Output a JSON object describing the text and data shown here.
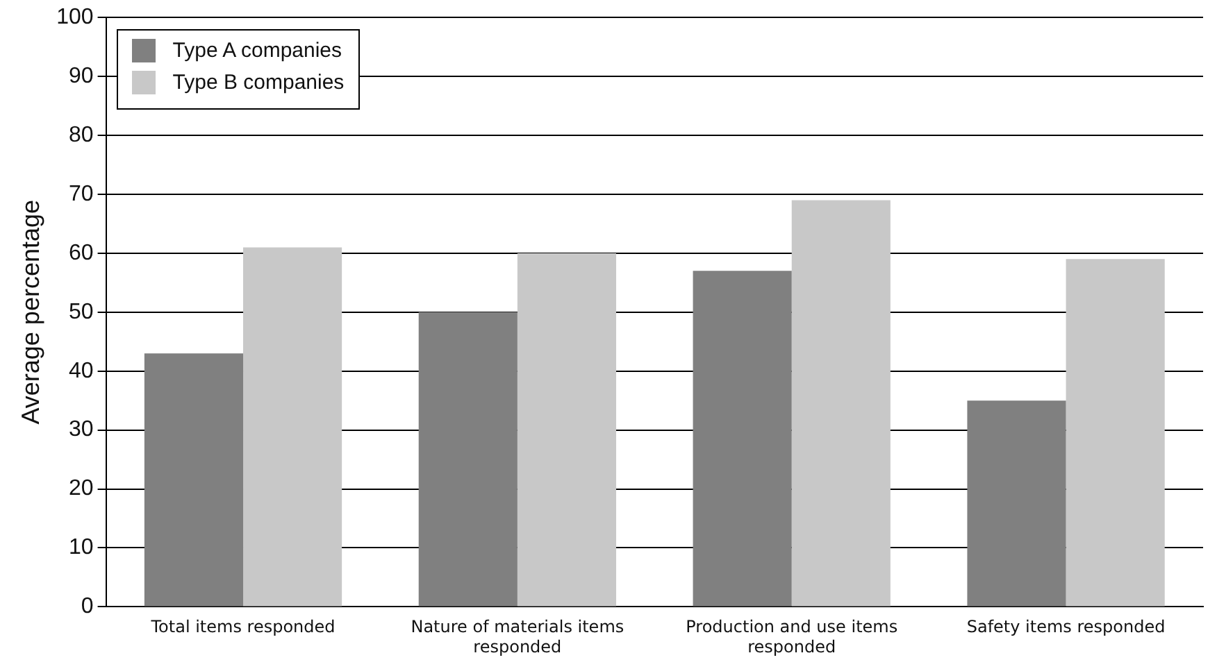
{
  "chart_data": {
    "type": "bar",
    "ylabel": "Average percentage",
    "categories": [
      "Total items responded",
      "Nature of materials items responded",
      "Production and use items responded",
      "Safety items responded"
    ],
    "series": [
      {
        "name": "Type A companies",
        "color": "#808080",
        "values": [
          43,
          50,
          57,
          35
        ]
      },
      {
        "name": "Type B companies",
        "color": "#c8c8c8",
        "values": [
          61,
          60,
          69,
          59
        ]
      }
    ],
    "ylim": [
      0,
      100
    ],
    "yticks": [
      0,
      10,
      20,
      30,
      40,
      50,
      60,
      70,
      80,
      90,
      100
    ],
    "grid": "y",
    "legend": "top left"
  }
}
